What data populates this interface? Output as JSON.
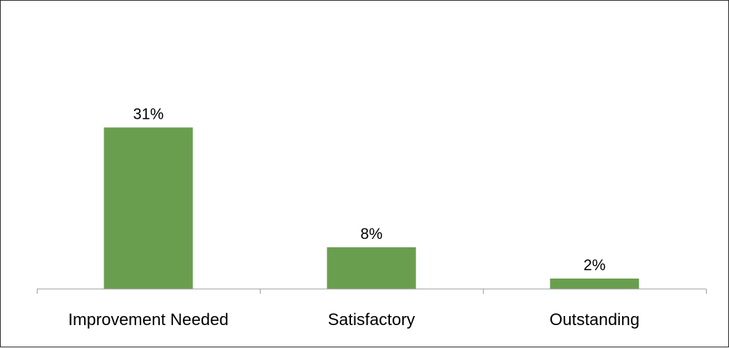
{
  "chart_data": {
    "type": "bar",
    "categories": [
      "Improvement Needed",
      "Satisfactory",
      "Outstanding"
    ],
    "values": [
      31,
      8,
      2
    ],
    "data_labels": [
      "31%",
      "8%",
      "2%"
    ],
    "unit": "%",
    "title": "",
    "xlabel": "",
    "ylabel": "",
    "ylim": [
      0,
      50
    ],
    "grid": false,
    "legend": "none",
    "bar_color": "#6a9e4f",
    "axis_color": "#9a9a9a"
  }
}
